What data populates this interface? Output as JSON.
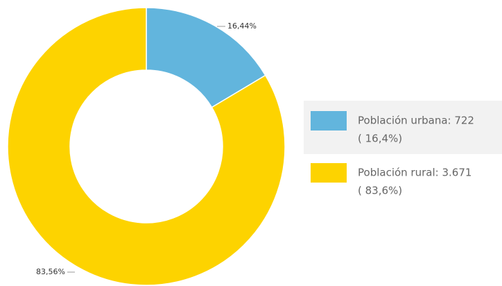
{
  "chart_data": {
    "type": "donut",
    "categories": [
      "Población urbana",
      "Población rural"
    ],
    "values": [
      16.44,
      83.56
    ],
    "value_labels": [
      "16,44%",
      "83,56%"
    ],
    "colors": [
      "#62b5dd",
      "#fdd300"
    ],
    "legend": [
      {
        "label": "Población urbana: 722",
        "share": "( 16,4%)"
      },
      {
        "label": "Población rural: 3.671",
        "share": "( 83,6%)"
      }
    ]
  }
}
